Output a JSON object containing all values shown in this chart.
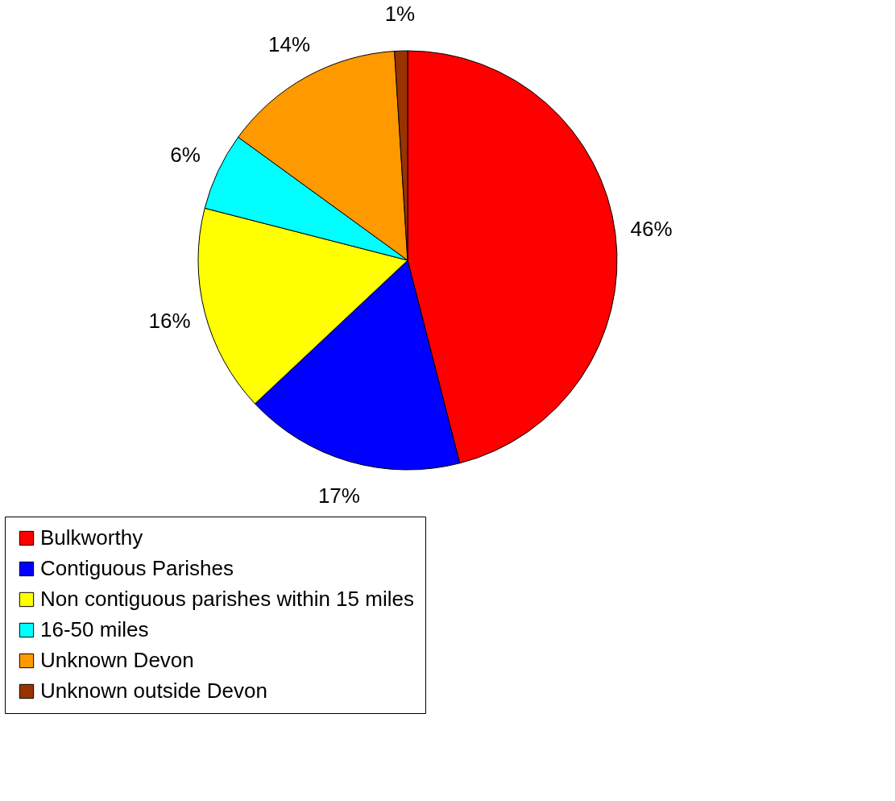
{
  "chart_data": {
    "type": "pie",
    "categories": [
      "Bulkworthy",
      "Contiguous Parishes",
      "Non contiguous parishes within 15 miles",
      "16-50 miles",
      "Unknown Devon",
      "Unknown outside Devon"
    ],
    "values": [
      46,
      17,
      16,
      6,
      14,
      1
    ],
    "colors": [
      "#ff0000",
      "#0000ff",
      "#ffff00",
      "#00ffff",
      "#ff9900",
      "#993300"
    ],
    "value_labels": [
      "46%",
      "17%",
      "16%",
      "6%",
      "14%",
      "1%"
    ],
    "legend": "bottom"
  }
}
